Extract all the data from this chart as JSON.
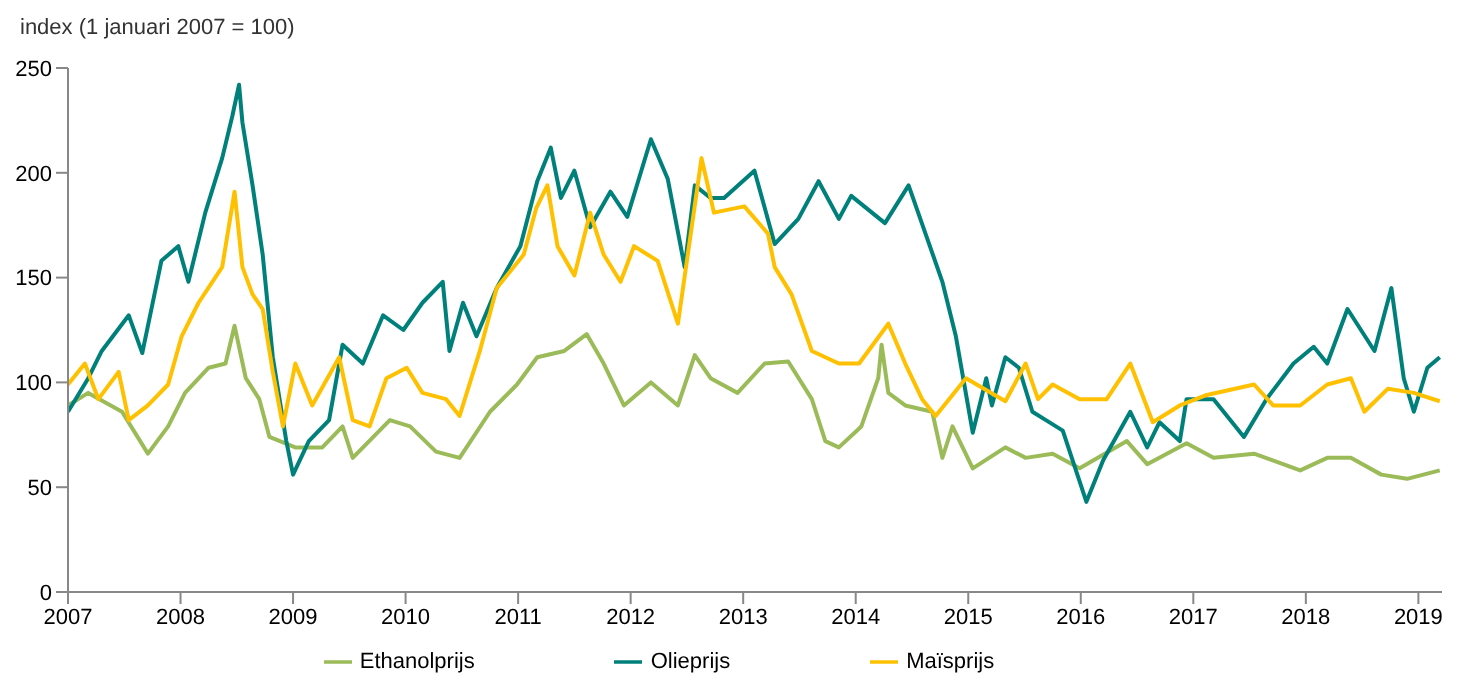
{
  "chart_data": {
    "type": "line",
    "ylabel": "index (1 januari 2007 = 100)",
    "xlim": [
      2007,
      2019.21
    ],
    "xticks": [
      2007,
      2008,
      2009,
      2010,
      2011,
      2012,
      2013,
      2014,
      2015,
      2016,
      2017,
      2018,
      2019
    ],
    "ylim": [
      0,
      250
    ],
    "yticks": [
      0,
      50,
      100,
      150,
      200,
      250
    ],
    "grid": false,
    "legend": "bottom",
    "marker": "none",
    "line_style": "solid",
    "series": [
      {
        "name": "Ethanolprijs",
        "color": "#9bbb59",
        "x": [
          2007,
          2007.18,
          2007.48,
          2007.71,
          2007.89,
          2008.04,
          2008.25,
          2008.4,
          2008.48,
          2008.58,
          2008.7,
          2008.79,
          2009.02,
          2009.26,
          2009.44,
          2009.53,
          2009.86,
          2010.04,
          2010.27,
          2010.48,
          2010.75,
          2010.99,
          2011.17,
          2011.41,
          2011.61,
          2011.76,
          2011.94,
          2012.18,
          2012.42,
          2012.57,
          2012.71,
          2012.95,
          2013.19,
          2013.4,
          2013.61,
          2013.73,
          2013.85,
          2014.05,
          2014.2,
          2014.23,
          2014.29,
          2014.44,
          2014.68,
          2014.77,
          2014.86,
          2015.04,
          2015.33,
          2015.51,
          2015.75,
          2015.99,
          2016.41,
          2016.59,
          2016.94,
          2017.18,
          2017.54,
          2017.95,
          2018.19,
          2018.4,
          2018.67,
          2018.9,
          2019.19
        ],
        "values": [
          89,
          95,
          86,
          66,
          79,
          95,
          107,
          109,
          127,
          102,
          92,
          74,
          69,
          69,
          79,
          64,
          82,
          79,
          67,
          64,
          86,
          99,
          112,
          115,
          123,
          109,
          89,
          100,
          89,
          113,
          102,
          95,
          109,
          110,
          92,
          72,
          69,
          79,
          102,
          118,
          95,
          89,
          86,
          64,
          79,
          59,
          69,
          64,
          66,
          59,
          72,
          61,
          71,
          64,
          66,
          58,
          64,
          64,
          56,
          54,
          58
        ]
      },
      {
        "name": "Olieprijs",
        "color": "#00807a",
        "x": [
          2007,
          2007.18,
          2007.3,
          2007.54,
          2007.66,
          2007.83,
          2007.98,
          2008.07,
          2008.22,
          2008.37,
          2008.46,
          2008.52,
          2008.55,
          2008.64,
          2008.73,
          2008.82,
          2008.94,
          2009.0,
          2009.14,
          2009.32,
          2009.44,
          2009.62,
          2009.8,
          2009.98,
          2010.15,
          2010.33,
          2010.39,
          2010.51,
          2010.63,
          2010.81,
          2011.02,
          2011.17,
          2011.29,
          2011.38,
          2011.5,
          2011.64,
          2011.82,
          2011.97,
          2012.18,
          2012.33,
          2012.48,
          2012.57,
          2012.71,
          2012.83,
          2013.1,
          2013.28,
          2013.49,
          2013.67,
          2013.85,
          2013.96,
          2014.26,
          2014.47,
          2014.62,
          2014.77,
          2014.89,
          2015.04,
          2015.16,
          2015.21,
          2015.33,
          2015.45,
          2015.57,
          2015.69,
          2015.84,
          2016.05,
          2016.2,
          2016.44,
          2016.59,
          2016.7,
          2016.88,
          2016.94,
          2017.18,
          2017.45,
          2017.65,
          2017.89,
          2018.07,
          2018.19,
          2018.37,
          2018.61,
          2018.76,
          2018.87,
          2018.96,
          2019.08,
          2019.19
        ],
        "values": [
          86,
          102,
          115,
          132,
          114,
          158,
          165,
          148,
          181,
          207,
          227,
          242,
          224,
          194,
          161,
          112,
          72,
          56,
          72,
          82,
          118,
          109,
          132,
          125,
          138,
          148,
          115,
          138,
          122,
          145,
          165,
          196,
          212,
          188,
          201,
          174,
          191,
          179,
          216,
          197,
          155,
          194,
          188,
          188,
          201,
          166,
          178,
          196,
          178,
          189,
          176,
          194,
          171,
          148,
          122,
          76,
          102,
          89,
          112,
          107,
          86,
          82,
          77,
          43,
          63,
          86,
          69,
          81,
          72,
          92,
          92,
          74,
          92,
          109,
          117,
          109,
          135,
          115,
          145,
          102,
          86,
          107,
          112
        ]
      },
      {
        "name": "Maïsprijs",
        "color": "#ffc000",
        "x": [
          2007,
          2007.15,
          2007.27,
          2007.45,
          2007.54,
          2007.71,
          2007.89,
          2008.01,
          2008.16,
          2008.37,
          2008.48,
          2008.55,
          2008.64,
          2008.73,
          2008.82,
          2008.91,
          2009.02,
          2009.17,
          2009.41,
          2009.53,
          2009.68,
          2009.83,
          2010.01,
          2010.15,
          2010.36,
          2010.48,
          2010.66,
          2010.81,
          2011.05,
          2011.16,
          2011.26,
          2011.35,
          2011.5,
          2011.64,
          2011.76,
          2011.91,
          2012.03,
          2012.24,
          2012.42,
          2012.63,
          2012.74,
          2013.01,
          2013.22,
          2013.28,
          2013.43,
          2013.61,
          2013.85,
          2014.03,
          2014.29,
          2014.44,
          2014.59,
          2014.71,
          2014.98,
          2015.33,
          2015.51,
          2015.62,
          2015.75,
          2015.99,
          2016.23,
          2016.44,
          2016.64,
          2016.88,
          2017.12,
          2017.54,
          2017.71,
          2017.95,
          2018.19,
          2018.4,
          2018.52,
          2018.73,
          2018.96,
          2019.19
        ],
        "values": [
          99,
          109,
          92,
          105,
          82,
          89,
          99,
          122,
          138,
          155,
          191,
          155,
          142,
          135,
          105,
          79,
          109,
          89,
          112,
          82,
          79,
          102,
          107,
          95,
          92,
          84,
          115,
          145,
          161,
          183,
          194,
          165,
          151,
          181,
          161,
          148,
          165,
          158,
          128,
          207,
          181,
          184,
          171,
          155,
          142,
          115,
          109,
          109,
          128,
          109,
          92,
          84,
          102,
          91,
          109,
          92,
          99,
          92,
          92,
          109,
          81,
          89,
          94,
          99,
          89,
          89,
          99,
          102,
          86,
          97,
          95,
          91
        ]
      }
    ]
  }
}
